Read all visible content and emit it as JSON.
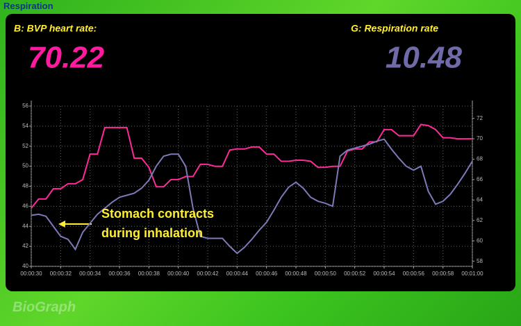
{
  "window_title": "Respiration",
  "brand": "BioGraph",
  "readouts": [
    {
      "label": "B: BVP heart rate:",
      "value": 70.22,
      "color": "#ff1aa0"
    },
    {
      "label": "G: Respiration rate",
      "value": 10.48,
      "color": "#6f6aa8"
    }
  ],
  "chart_data": {
    "type": "line",
    "annotation": [
      "Stomach contracts",
      "during inhalation"
    ],
    "annotation_color": "#ffee33",
    "x": [
      30,
      30.5,
      31,
      31.5,
      32,
      32.5,
      33,
      33.5,
      34,
      34.5,
      35,
      35.5,
      36,
      36.5,
      37,
      37.5,
      38,
      38.5,
      39,
      39.5,
      40,
      40.5,
      41,
      41.5,
      42,
      42.5,
      43,
      43.5,
      44,
      44.5,
      45,
      45.5,
      46,
      46.5,
      47,
      47.5,
      48,
      48.5,
      49,
      49.5,
      50,
      50.5,
      51,
      51.5,
      52,
      52.5,
      53,
      53.5,
      54,
      54.5,
      55,
      55.5,
      56,
      56.5,
      57,
      57.5,
      58,
      58.5,
      59,
      59.5,
      60
    ],
    "series": [
      {
        "color": "#ff2a9a",
        "axis": "y2",
        "values": [
          63.2,
          64.1,
          64.1,
          65.1,
          65.1,
          65.6,
          65.6,
          66.0,
          68.5,
          68.5,
          71.1,
          71.1,
          71.1,
          71.1,
          68.1,
          68.1,
          67.2,
          65.3,
          65.3,
          66.0,
          66.0,
          66.3,
          66.3,
          67.5,
          67.5,
          67.3,
          67.3,
          68.9,
          69.0,
          69.0,
          69.2,
          69.2,
          68.5,
          68.5,
          67.8,
          67.8,
          67.9,
          67.9,
          67.8,
          67.2,
          67.2,
          67.3,
          67.3,
          68.8,
          69.0,
          69.0,
          69.7,
          69.7,
          70.9,
          70.9,
          70.3,
          70.3,
          70.3,
          71.4,
          71.3,
          70.9,
          70.1,
          70.1,
          70.0,
          70.0,
          70.0
        ]
      },
      {
        "color": "#7d7ab8",
        "values": [
          45.1,
          45.2,
          45.0,
          44.0,
          43.0,
          42.7,
          41.7,
          43.4,
          44.3,
          45.2,
          45.8,
          46.4,
          46.9,
          47.1,
          47.3,
          47.8,
          48.6,
          50.0,
          51.0,
          51.2,
          51.2,
          50.0,
          45.8,
          43.0,
          42.8,
          42.8,
          42.8,
          42.0,
          41.3,
          41.9,
          42.7,
          43.6,
          44.4,
          45.6,
          46.9,
          47.9,
          48.4,
          47.8,
          46.9,
          46.5,
          46.3,
          46.0,
          51.0,
          51.6,
          51.8,
          52.0,
          52.2,
          52.5,
          52.7,
          51.7,
          50.8,
          50.0,
          49.6,
          50.0,
          47.5,
          46.2,
          46.5,
          47.2,
          48.2,
          49.3,
          50.5
        ]
      }
    ],
    "xlim": [
      30,
      60
    ],
    "xticks": [
      {
        "value": 30,
        "label": "00:00:30"
      },
      {
        "value": 32,
        "label": "00:00:32"
      },
      {
        "value": 34,
        "label": "00:00:34"
      },
      {
        "value": 36,
        "label": "00:00:36"
      },
      {
        "value": 38,
        "label": "00:00:38"
      },
      {
        "value": 40,
        "label": "00:00:40"
      },
      {
        "value": 42,
        "label": "00:00:42"
      },
      {
        "value": 44,
        "label": "00:00:44"
      },
      {
        "value": 46,
        "label": "00:00:46"
      },
      {
        "value": 48,
        "label": "00:00:48"
      },
      {
        "value": 50,
        "label": "00:00:50"
      },
      {
        "value": 52,
        "label": "00:00:52"
      },
      {
        "value": 54,
        "label": "00:00:54"
      },
      {
        "value": 56,
        "label": "00:00:56"
      },
      {
        "value": 58,
        "label": "00:00:58"
      },
      {
        "value": 60,
        "label": "00:01:00"
      }
    ],
    "ylim": [
      40,
      56
    ],
    "yticks": [
      40,
      42,
      44,
      46,
      48,
      50,
      52,
      54,
      56
    ],
    "y2lim": [
      57.5,
      73.2
    ],
    "y2ticks": [
      58,
      60,
      62,
      64,
      66,
      68,
      70,
      72
    ],
    "grid": true
  }
}
